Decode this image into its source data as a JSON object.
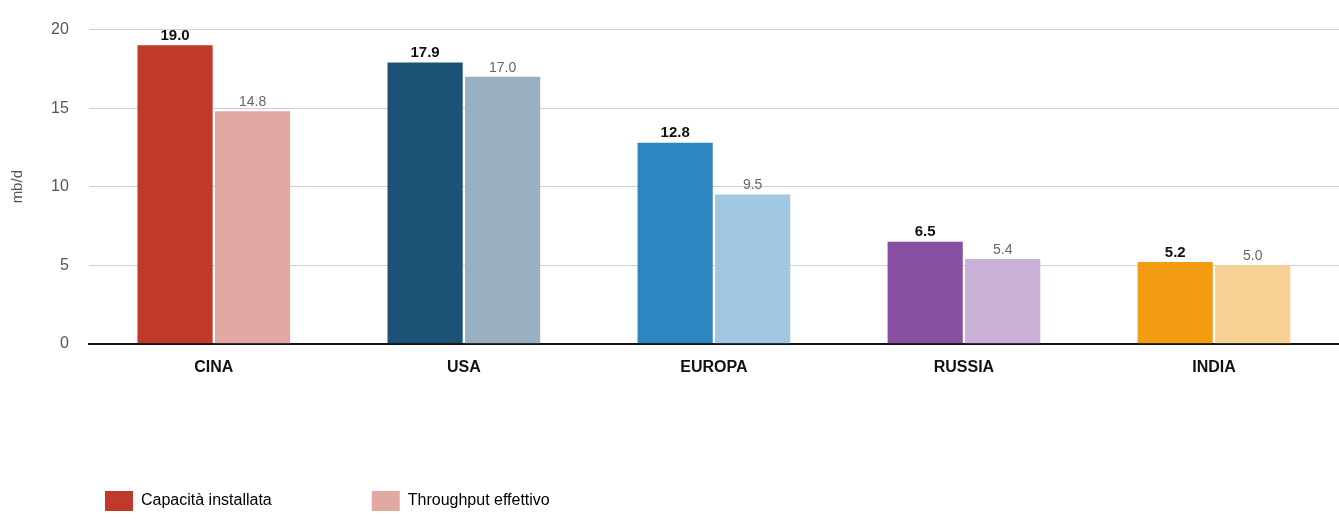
{
  "chart_data": {
    "type": "bar",
    "ylabel": "mb/d",
    "categories": [
      "CINA",
      "USA",
      "EUROPA",
      "RUSSIA",
      "INDIA"
    ],
    "series": [
      {
        "name": "Capacità installata",
        "color": "#c0392b",
        "colors": [
          "#c0392b",
          "#1b5276",
          "#2e86c1",
          "#884ea0",
          "#f39c12"
        ],
        "values": [
          19.0,
          17.9,
          12.8,
          6.5,
          5.2
        ],
        "value_labels": [
          "19.0",
          "17.9",
          "12.8",
          "6.5",
          "5.2"
        ]
      },
      {
        "name": "Throughput effettivo",
        "color": "#e2a8a2",
        "colors": [
          "#e2a8a2",
          "#98b0c1",
          "#a1c7e3",
          "#c9b0d6",
          "#f8d295"
        ],
        "values": [
          14.8,
          17.0,
          9.5,
          5.4,
          5.0
        ],
        "value_labels": [
          "14.8",
          "17.0",
          "9.5",
          "5.4",
          "5.0"
        ]
      }
    ],
    "ylim": [
      0,
      20
    ],
    "yticks": [
      0,
      5,
      10,
      15,
      20
    ],
    "grid": "y",
    "legend": "bottom left"
  }
}
